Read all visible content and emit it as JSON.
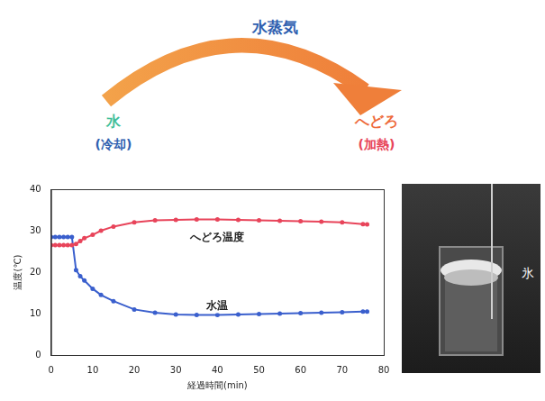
{
  "diagram": {
    "arrow_label": "水蒸気",
    "source": {
      "label": "水",
      "note": "(冷却)"
    },
    "target": {
      "label": "へどろ",
      "note": "(加熱)"
    }
  },
  "chart_data": {
    "type": "line",
    "x_label": "経過時間(min)",
    "y_label": "温度(℃)",
    "x": [
      0,
      1,
      2,
      3,
      4,
      5,
      6,
      7,
      8,
      10,
      12,
      15,
      20,
      25,
      30,
      35,
      40,
      45,
      50,
      55,
      60,
      65,
      70,
      75,
      76
    ],
    "series": [
      {
        "name": "へどろ温度",
        "color": "#e8445a",
        "values": [
          26.5,
          26.5,
          26.5,
          26.5,
          26.5,
          26.5,
          26.8,
          27.5,
          28.2,
          29,
          30,
          31,
          32,
          32.5,
          32.6,
          32.7,
          32.7,
          32.6,
          32.5,
          32.4,
          32.3,
          32.2,
          32,
          31.6,
          31.5
        ]
      },
      {
        "name": "水温",
        "color": "#3a5fcd",
        "values": [
          28.5,
          28.5,
          28.5,
          28.5,
          28.5,
          28.5,
          20.5,
          19,
          18,
          16,
          14.5,
          13,
          11,
          10.2,
          9.8,
          9.7,
          9.7,
          9.8,
          9.9,
          10,
          10.1,
          10.2,
          10.3,
          10.5,
          10.5
        ]
      }
    ],
    "xlim": [
      0,
      80
    ],
    "xticks": [
      0,
      10,
      20,
      30,
      40,
      50,
      60,
      70,
      80
    ],
    "ylim": [
      0,
      40
    ],
    "yticks": [
      0,
      10,
      20,
      30,
      40
    ],
    "grid": false,
    "marker": "circle"
  },
  "photo": {
    "label": "氷"
  }
}
